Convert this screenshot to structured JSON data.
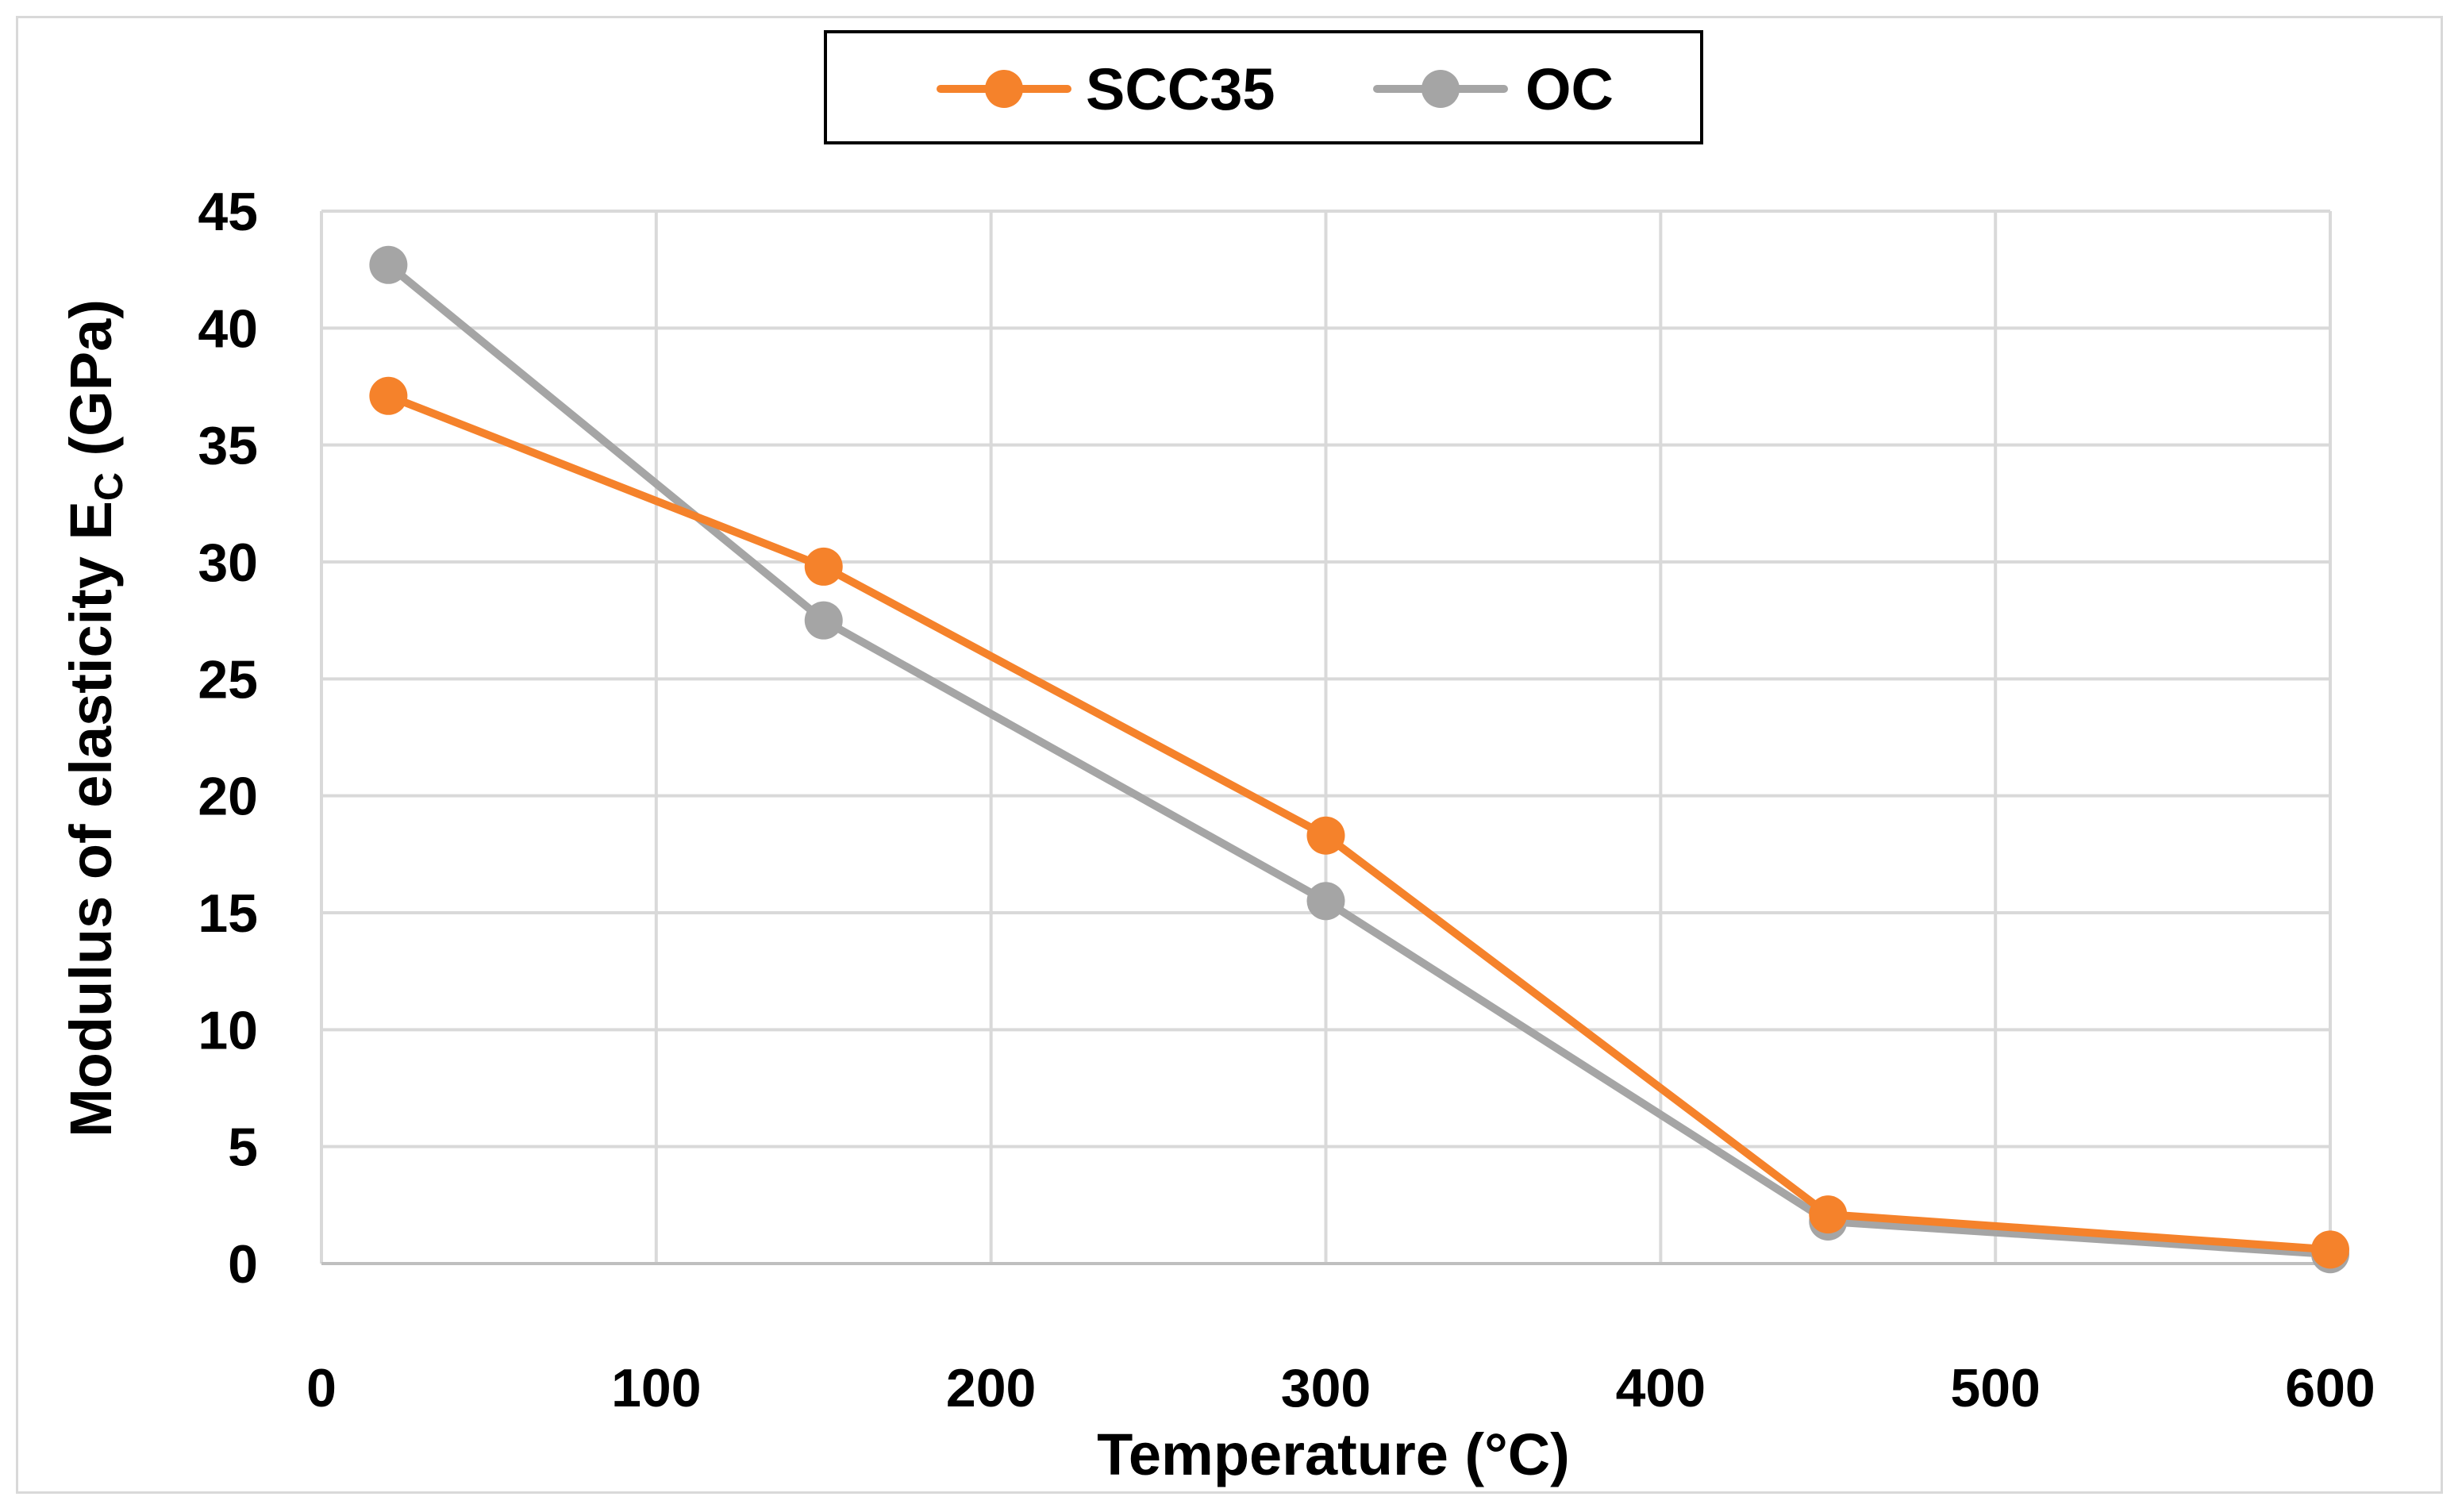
{
  "chart_data": {
    "type": "line",
    "title": "",
    "xlabel": "Temperature (°C)",
    "ylabel_main": "Modulus of elasticity E",
    "ylabel_sub": "C",
    "ylabel_unit": " (GPa)",
    "xlim": [
      0,
      600
    ],
    "ylim": [
      0,
      45
    ],
    "x_ticks": [
      0,
      100,
      200,
      300,
      400,
      500,
      600
    ],
    "y_ticks": [
      0,
      5,
      10,
      15,
      20,
      25,
      30,
      35,
      40,
      45
    ],
    "grid": true,
    "legend_position": "top-center",
    "series": [
      {
        "name": "SCC35",
        "color": "#f5822b",
        "x": [
          20,
          150,
          300,
          450,
          600
        ],
        "y": [
          37.1,
          29.8,
          18.3,
          2.1,
          0.6
        ]
      },
      {
        "name": "OC",
        "color": "#a5a5a5",
        "x": [
          20,
          150,
          300,
          450,
          600
        ],
        "y": [
          42.7,
          27.5,
          15.5,
          1.8,
          0.4
        ]
      }
    ]
  }
}
